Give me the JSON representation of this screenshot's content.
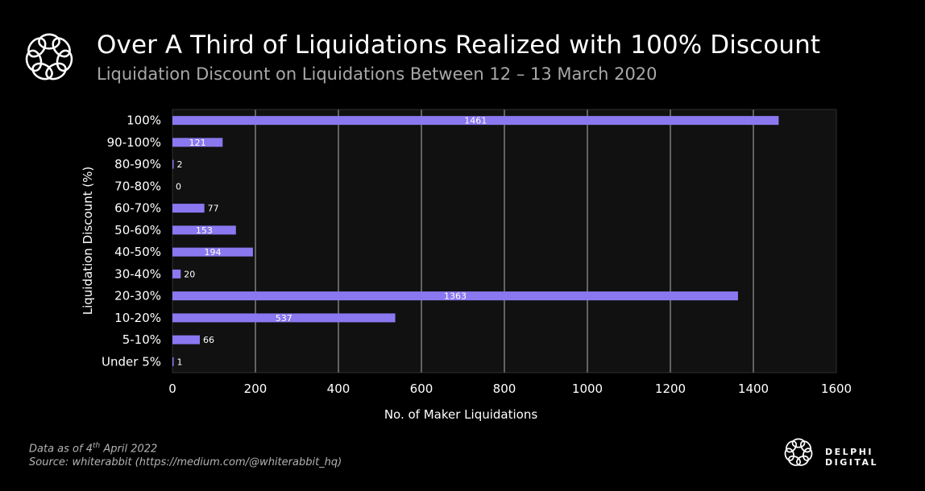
{
  "header": {
    "title": "Over A Third of Liquidations Realized with 100% Discount",
    "subtitle": "Liquidation Discount on Liquidations Between 12 – 13 March 2020"
  },
  "footer": {
    "data_as_of_prefix": "Data as of 4",
    "data_as_of_sup": "th",
    "data_as_of_suffix": " April 2022",
    "source": "Source: whiterabbit (https://medium.com/@whiterabbit_hq)"
  },
  "brand": {
    "name": "DELPHI DIGITAL"
  },
  "icons": {
    "header_logo": "delphi-flower-icon",
    "footer_logo": "delphi-flower-icon"
  },
  "colors": {
    "bar": "#8a78f0",
    "plot_bg": "#111111",
    "grid": "#ffffff"
  },
  "chart_data": {
    "type": "bar",
    "orientation": "horizontal",
    "categories": [
      "100%",
      "90-100%",
      "80-90%",
      "70-80%",
      "60-70%",
      "50-60%",
      "40-50%",
      "30-40%",
      "20-30%",
      "10-20%",
      "5-10%",
      "Under 5%"
    ],
    "values": [
      1461,
      121,
      2,
      0,
      77,
      153,
      194,
      20,
      1363,
      537,
      66,
      1
    ],
    "xlabel": "No. of Maker Liquidations",
    "ylabel": "Liquidation Discount (%)",
    "xlim": [
      0,
      1600
    ],
    "xticks": [
      0,
      200,
      400,
      600,
      800,
      1000,
      1200,
      1400,
      1600
    ],
    "grid": "vertical",
    "data_labels": true
  }
}
